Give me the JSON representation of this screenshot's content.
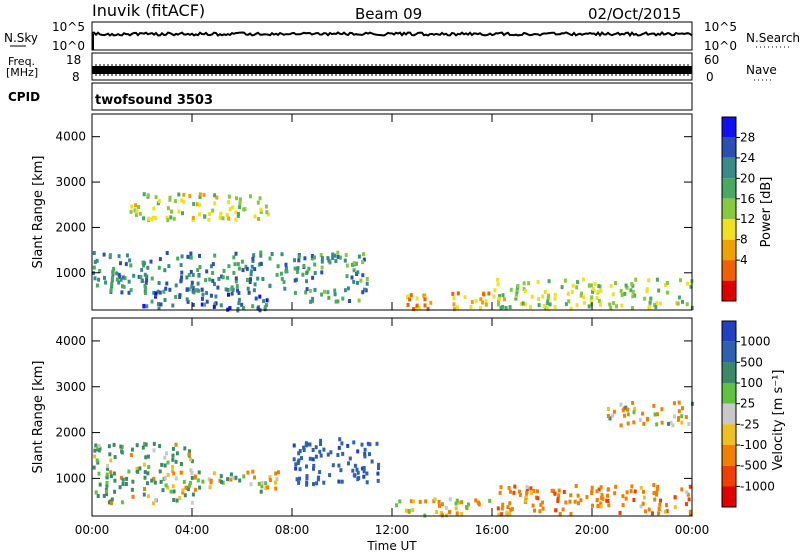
{
  "header": {
    "station": "Inuvik (fitACF)",
    "beam": "Beam 09",
    "date": "02/Oct/2015"
  },
  "strip_panels": {
    "nsky_label": "N.Sky",
    "nsky_ticks": [
      "10^5",
      "10^0"
    ],
    "nsearch_label": "N.Search",
    "nsearch_ticks": [
      "10^5",
      "10^0"
    ],
    "freq_label_top": "Freq.",
    "freq_label_unit": "[MHz]",
    "freq_ticks": [
      "18",
      "8"
    ],
    "nave_label": "Nave",
    "nave_ticks": [
      "60",
      "0"
    ],
    "cpid_label": "CPID",
    "cpid_value": "twofsound 3503"
  },
  "colors": {
    "power_scale": [
      "#1010f0",
      "#2a4fb0",
      "#3a8a8a",
      "#4aa860",
      "#88c840",
      "#f0e020",
      "#f0a000",
      "#f06000",
      "#e00000"
    ],
    "velocity_scale": [
      "#2040c0",
      "#3060b0",
      "#3a8a6a",
      "#60c040",
      "#c8c8c8",
      "#f0c020",
      "#f08000",
      "#f04000",
      "#e00000"
    ]
  },
  "chart_data": [
    {
      "type": "heatmap",
      "panel": "power",
      "ylabel": "Slant Range [km]",
      "yticks": [
        1000,
        2000,
        3000,
        4000
      ],
      "ylim": [
        180,
        4500
      ],
      "x_ticks": [
        "00:00",
        "04:00",
        "08:00",
        "12:00",
        "16:00",
        "20:00",
        "00:00"
      ],
      "x_hours": [
        0,
        4,
        8,
        12,
        16,
        20,
        24
      ],
      "colorbar_label": "Power [dB]",
      "colorbar_ticks": [
        "28",
        "24",
        "20",
        "16",
        "12",
        "8",
        "4"
      ],
      "colorbar_range": [
        0,
        32
      ],
      "approx_features": [
        {
          "t0": 0.0,
          "t1": 8.5,
          "r0": 600,
          "r1": 1500,
          "level": 24
        },
        {
          "t0": 2.0,
          "t1": 7.0,
          "r0": 200,
          "r1": 700,
          "level": 26
        },
        {
          "t0": 8.5,
          "t1": 11.0,
          "r0": 400,
          "r1": 1500,
          "level": 22
        },
        {
          "t0": 12.5,
          "t1": 16.5,
          "r0": 200,
          "r1": 600,
          "level": 8
        },
        {
          "t0": 16.0,
          "t1": 24.0,
          "r0": 250,
          "r1": 900,
          "level": 16
        },
        {
          "t0": 1.5,
          "t1": 7.0,
          "r0": 2200,
          "r1": 2800,
          "level": 14
        }
      ]
    },
    {
      "type": "heatmap",
      "panel": "velocity",
      "ylabel": "Slant Range [km]",
      "yticks": [
        1000,
        2000,
        3000,
        4000
      ],
      "ylim": [
        180,
        4500
      ],
      "x_ticks": [
        "00:00",
        "04:00",
        "08:00",
        "12:00",
        "16:00",
        "20:00",
        "00:00"
      ],
      "x_hours": [
        0,
        4,
        8,
        12,
        16,
        20,
        24
      ],
      "xlabel": "Time UT",
      "colorbar_label": "Velocity [m s⁻¹]",
      "colorbar_ticks": [
        "1000",
        "500",
        "100",
        "25",
        "-25",
        "-100",
        "-500",
        "-1000"
      ],
      "approx_features": [
        {
          "t0": 0.0,
          "t1": 4.0,
          "r0": 500,
          "r1": 1800,
          "value": 150
        },
        {
          "t0": 3.5,
          "t1": 7.5,
          "r0": 700,
          "r1": 1200,
          "value": 0
        },
        {
          "t0": 8.0,
          "t1": 11.5,
          "r0": 900,
          "r1": 1900,
          "value": 800
        },
        {
          "t0": 12.0,
          "t1": 16.0,
          "r0": 200,
          "r1": 600,
          "value": -200
        },
        {
          "t0": 16.0,
          "t1": 24.0,
          "r0": 250,
          "r1": 900,
          "value": -300
        },
        {
          "t0": 20.5,
          "t1": 24.0,
          "r0": 2200,
          "r1": 2700,
          "value": -150
        }
      ]
    }
  ]
}
